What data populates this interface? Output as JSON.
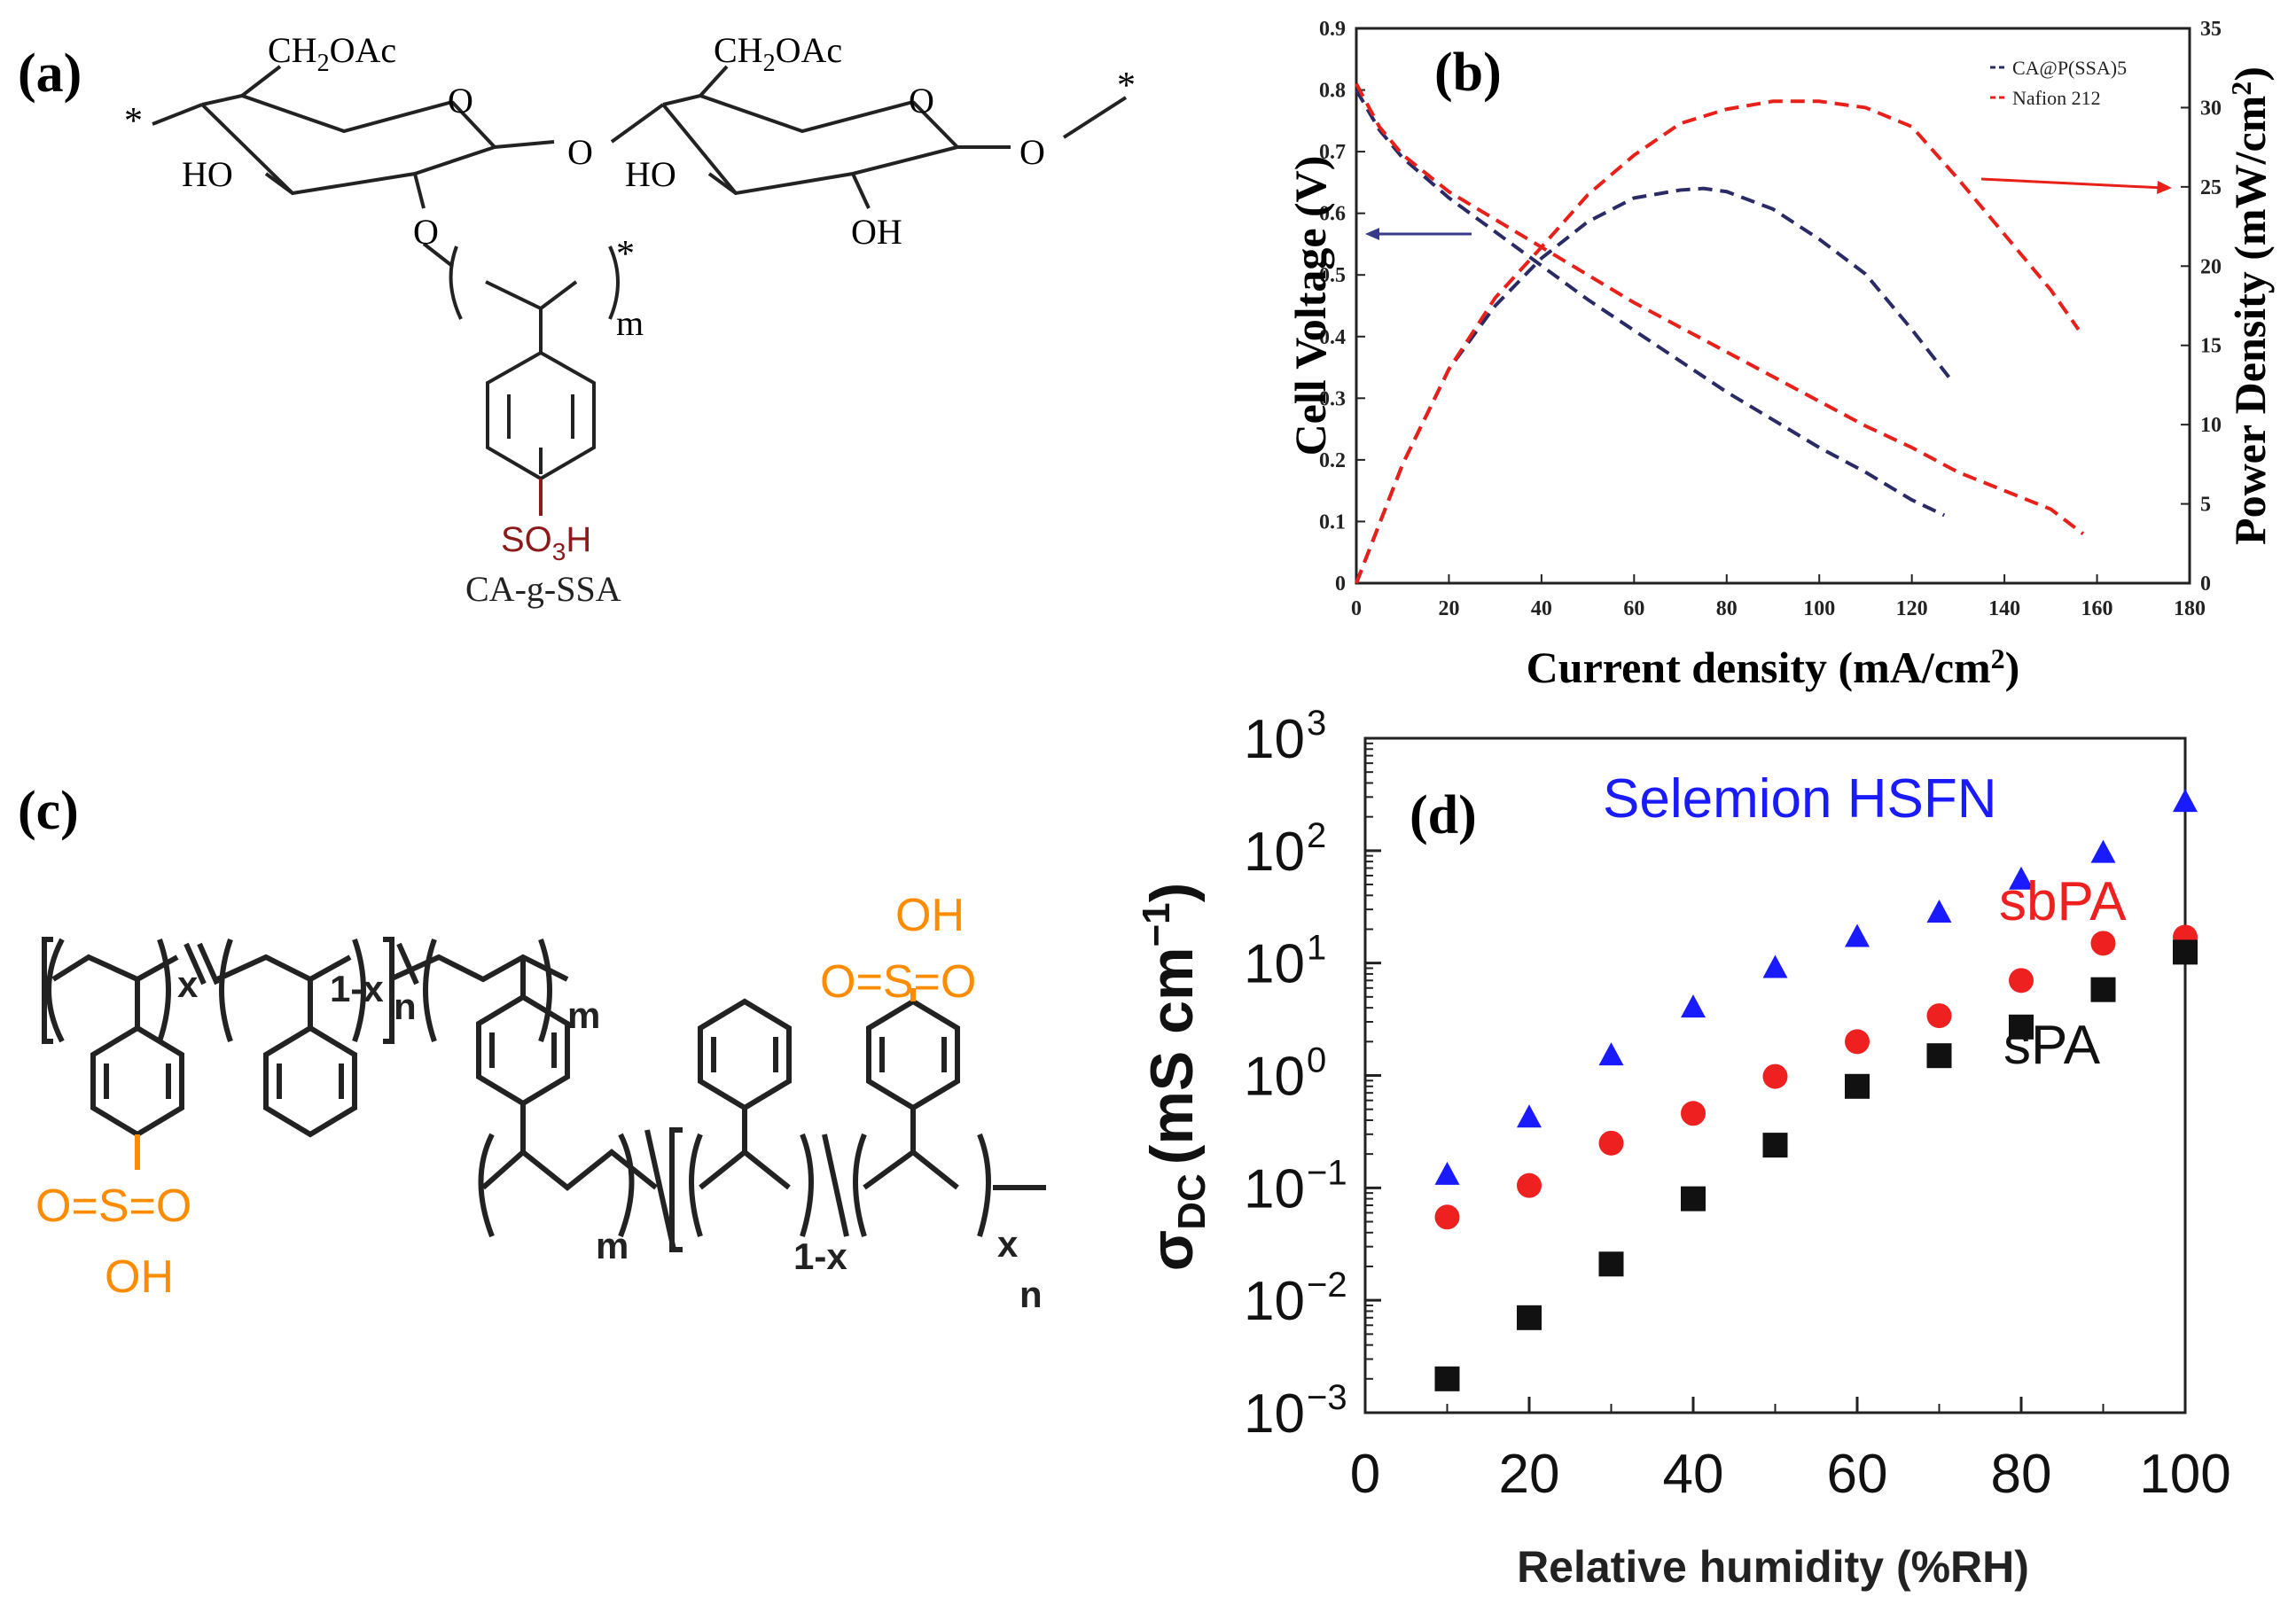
{
  "panels": {
    "a": "(a)",
    "b": "(b)",
    "c": "(c)",
    "d": "(d)"
  },
  "structure_a": {
    "ch2oac_1": "CH2OAc",
    "ch2oac_2": "CH2OAc",
    "ho_1": "HO",
    "ho_2": "HO",
    "oh": "OH",
    "o_ring1": "O",
    "o_ring2": "O",
    "o_link": "O",
    "o_end": "O",
    "o_branch": "O",
    "m": "m",
    "so3h": "SO3H",
    "name": "CA-g-SSA",
    "star": "*"
  },
  "structure_c": {
    "x1": "x",
    "one_minus_x1": "1-x",
    "n1": "n",
    "m1": "m",
    "m2": "m",
    "one_minus_x2": "1-x",
    "x2": "x",
    "n2": "n",
    "oh_left": "OH",
    "o_eq_s_eq_o_left": "O=S=O",
    "oh_right": "OH",
    "o_eq_s_eq_o_right": "O=S=O"
  },
  "colors": {
    "navy": "#2a2a66",
    "red": "#e8201a",
    "blue": "#1a1aff",
    "dot_red": "#ee2020",
    "orange": "#ff8c00",
    "dark_red": "#8b1a1a",
    "arrow_blue": "#3a3a8a"
  },
  "chart_data": [
    {
      "type": "line",
      "title": "(b)",
      "xlabel": "Current density (mA/cm²)",
      "ylabel_left": "Cell Voltage (V)",
      "ylabel_right": "Power Density (mW/cm²)",
      "xlim": [
        0,
        180
      ],
      "ylim_left": [
        0,
        0.9
      ],
      "ylim_right": [
        0,
        35
      ],
      "xticks": [
        "0",
        "20",
        "40",
        "60",
        "80",
        "100",
        "120",
        "140",
        "160",
        "180"
      ],
      "yticks_left": [
        "0",
        "0.1",
        "0.2",
        "0.3",
        "0.4",
        "0.5",
        "0.6",
        "0.7",
        "0.8",
        "0.9"
      ],
      "yticks_right": [
        "0",
        "5",
        "10",
        "15",
        "20",
        "25",
        "30",
        "35"
      ],
      "legend_position": "top-right",
      "series": [
        {
          "name": "CA@P(SSA)5",
          "axis": "left",
          "kind": "voltage",
          "x": [
            0,
            5,
            10,
            20,
            30,
            40,
            50,
            60,
            70,
            80,
            90,
            100,
            110,
            120,
            127
          ],
          "y": [
            0.8,
            0.735,
            0.69,
            0.625,
            0.57,
            0.515,
            0.46,
            0.41,
            0.36,
            0.31,
            0.265,
            0.22,
            0.18,
            0.135,
            0.11
          ]
        },
        {
          "name": "CA@P(SSA)5",
          "axis": "right",
          "kind": "power",
          "x": [
            0,
            10,
            20,
            30,
            40,
            50,
            60,
            70,
            75,
            80,
            90,
            100,
            110,
            120,
            128
          ],
          "y": [
            0,
            7.5,
            13.5,
            17.5,
            20.5,
            22.8,
            24.3,
            24.8,
            24.9,
            24.7,
            23.6,
            21.7,
            19.5,
            16,
            13
          ]
        },
        {
          "name": "Nafion 212",
          "axis": "left",
          "kind": "voltage",
          "x": [
            0,
            5,
            10,
            20,
            30,
            40,
            50,
            60,
            70,
            80,
            90,
            100,
            110,
            120,
            130,
            140,
            150,
            157
          ],
          "y": [
            0.81,
            0.74,
            0.695,
            0.635,
            0.59,
            0.545,
            0.5,
            0.455,
            0.415,
            0.375,
            0.335,
            0.295,
            0.255,
            0.22,
            0.18,
            0.15,
            0.12,
            0.08
          ]
        },
        {
          "name": "Nafion 212",
          "axis": "right",
          "kind": "power",
          "x": [
            0,
            10,
            20,
            30,
            40,
            50,
            60,
            70,
            80,
            90,
            100,
            110,
            120,
            130,
            140,
            150,
            156
          ],
          "y": [
            0,
            7.5,
            13.5,
            18,
            21.2,
            24.5,
            27,
            29,
            29.9,
            30.4,
            30.4,
            30,
            28.8,
            25.5,
            22,
            18.5,
            16
          ]
        }
      ],
      "legend": [
        "CA@P(SSA)5",
        "Nafion 212"
      ]
    },
    {
      "type": "scatter",
      "title": "(d)",
      "xlabel": "Relative humidity (%RH)",
      "ylabel": "σDC (mS cm⁻¹)",
      "ylabel_symbol": "σ",
      "ylabel_sub": "DC",
      "ylabel_unit": "(mS cm",
      "ylabel_exp": "−1",
      "ylabel_close": ")",
      "yscale": "log",
      "xlim": [
        0,
        100
      ],
      "ylim": [
        0.001,
        1000
      ],
      "xticks": [
        "0",
        "20",
        "40",
        "60",
        "80",
        "100"
      ],
      "ytick_base": "10",
      "ytick_exps": [
        "−3",
        "−2",
        "−1",
        "0",
        "1",
        "2",
        "3"
      ],
      "series": [
        {
          "name": "Selemion HSFN",
          "marker": "triangle",
          "x": [
            10,
            20,
            30,
            40,
            50,
            60,
            70,
            80,
            90,
            100
          ],
          "y": [
            0.13,
            0.42,
            1.5,
            4,
            9,
            17,
            28,
            55,
            95,
            270
          ]
        },
        {
          "name": "sbPA",
          "marker": "circle",
          "x": [
            10,
            20,
            30,
            40,
            50,
            60,
            70,
            80,
            90,
            100
          ],
          "y": [
            0.055,
            0.105,
            0.25,
            0.46,
            0.98,
            2,
            3.4,
            7,
            15,
            17
          ]
        },
        {
          "name": "sPA",
          "marker": "square",
          "x": [
            10,
            20,
            30,
            40,
            50,
            60,
            70,
            80,
            90,
            100
          ],
          "y": [
            0.002,
            0.007,
            0.021,
            0.08,
            0.24,
            0.8,
            1.5,
            2.7,
            5.8,
            12.5
          ]
        }
      ],
      "labels": [
        "Selemion HSFN",
        "sbPA",
        "sPA"
      ]
    }
  ]
}
